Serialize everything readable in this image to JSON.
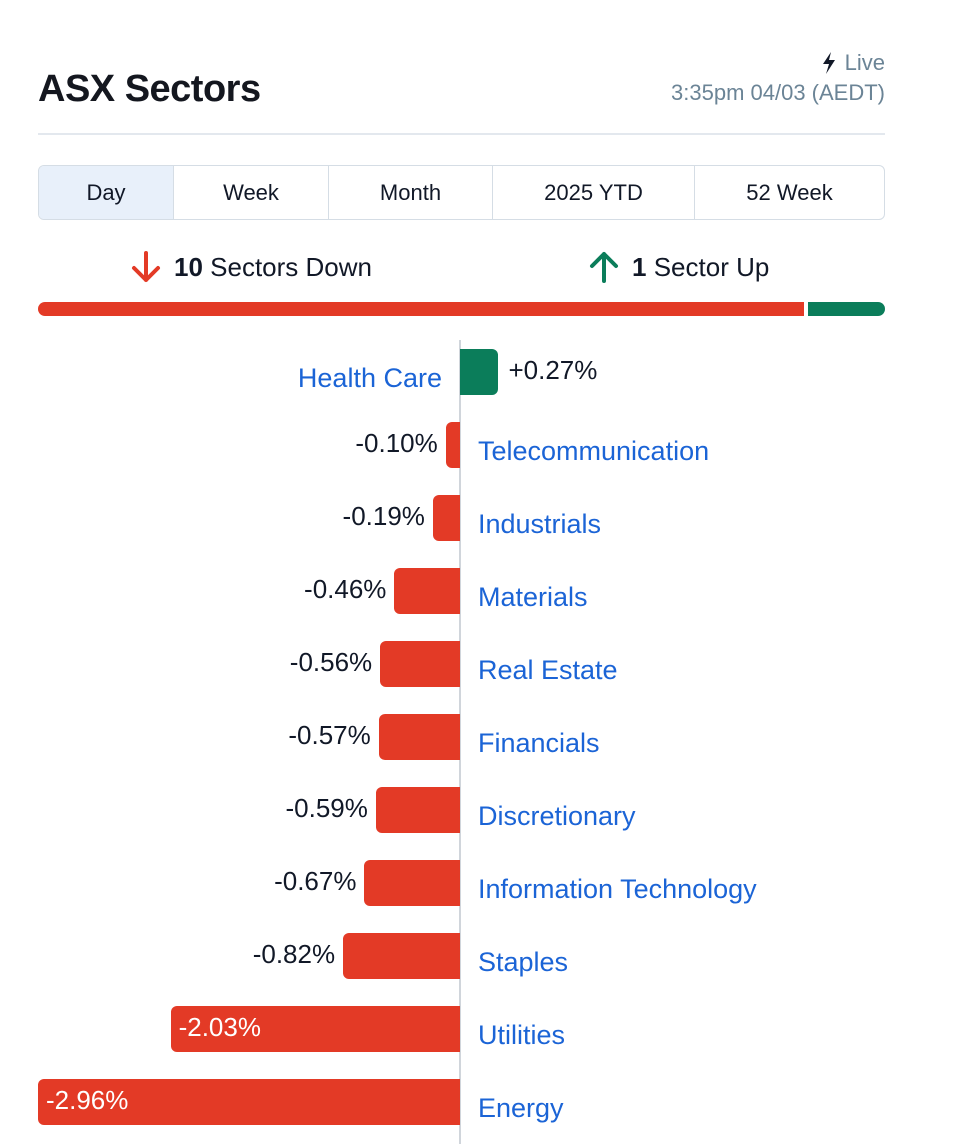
{
  "header": {
    "title": "ASX Sectors",
    "live_label": "Live",
    "timestamp": "3:35pm 04/03 (AEDT)"
  },
  "tabs": [
    {
      "label": "Day",
      "active": true
    },
    {
      "label": "Week",
      "active": false
    },
    {
      "label": "Month",
      "active": false
    },
    {
      "label": "2025 YTD",
      "active": false
    },
    {
      "label": "52 Week",
      "active": false
    }
  ],
  "summary": {
    "down_count": "10",
    "down_label": "Sectors Down",
    "up_count": "1",
    "up_label": "Sector Up",
    "down_share": 0.909,
    "up_share": 0.091
  },
  "colors": {
    "down": "#e33a26",
    "up": "#0b7d5a",
    "link": "#1b64d6",
    "muted": "#6b8496"
  },
  "chart_data": {
    "type": "bar",
    "orientation": "horizontal-diverging",
    "xlim": [
      -2.96,
      0.3
    ],
    "categories": [
      "Health Care",
      "Telecommunication",
      "Industrials",
      "Materials",
      "Real Estate",
      "Financials",
      "Discretionary",
      "Information Technology",
      "Staples",
      "Utilities",
      "Energy"
    ],
    "values": [
      0.27,
      -0.1,
      -0.19,
      -0.46,
      -0.56,
      -0.57,
      -0.59,
      -0.67,
      -0.82,
      -2.03,
      -2.96
    ],
    "labels": [
      "+0.27%",
      "-0.10%",
      "-0.19%",
      "-0.46%",
      "-0.56%",
      "-0.57%",
      "-0.59%",
      "-0.67%",
      "-0.82%",
      "-2.03%",
      "-2.96%"
    ]
  }
}
